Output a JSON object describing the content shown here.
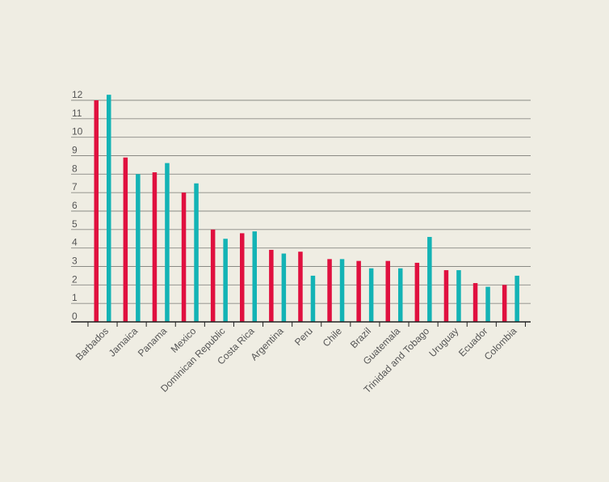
{
  "chart_data": {
    "type": "bar",
    "title": "",
    "xlabel": "",
    "ylabel": "",
    "ylim": [
      0,
      12
    ],
    "yticks": [
      0,
      1,
      2,
      3,
      4,
      5,
      6,
      7,
      8,
      9,
      10,
      11,
      12
    ],
    "grid": true,
    "categories": [
      "Barbados",
      "Jamaica",
      "Panama",
      "Mexico",
      "Dominican Republic",
      "Costa Rica",
      "Argentina",
      "Peru",
      "Chile",
      "Brazil",
      "Guatemala",
      "Trinidad and Tobago",
      "Uruguay",
      "Ecuador",
      "Colombia"
    ],
    "series": [
      {
        "color": "#e0103f",
        "values": [
          12.0,
          8.9,
          8.1,
          7.0,
          5.0,
          4.8,
          3.9,
          3.8,
          3.4,
          3.3,
          3.3,
          3.2,
          2.8,
          2.1,
          2.0
        ]
      },
      {
        "color": "#13b3b5",
        "values": [
          12.3,
          8.0,
          8.6,
          7.5,
          4.5,
          4.9,
          3.7,
          2.5,
          3.4,
          2.9,
          2.9,
          4.6,
          2.8,
          1.9,
          2.5
        ]
      }
    ]
  }
}
